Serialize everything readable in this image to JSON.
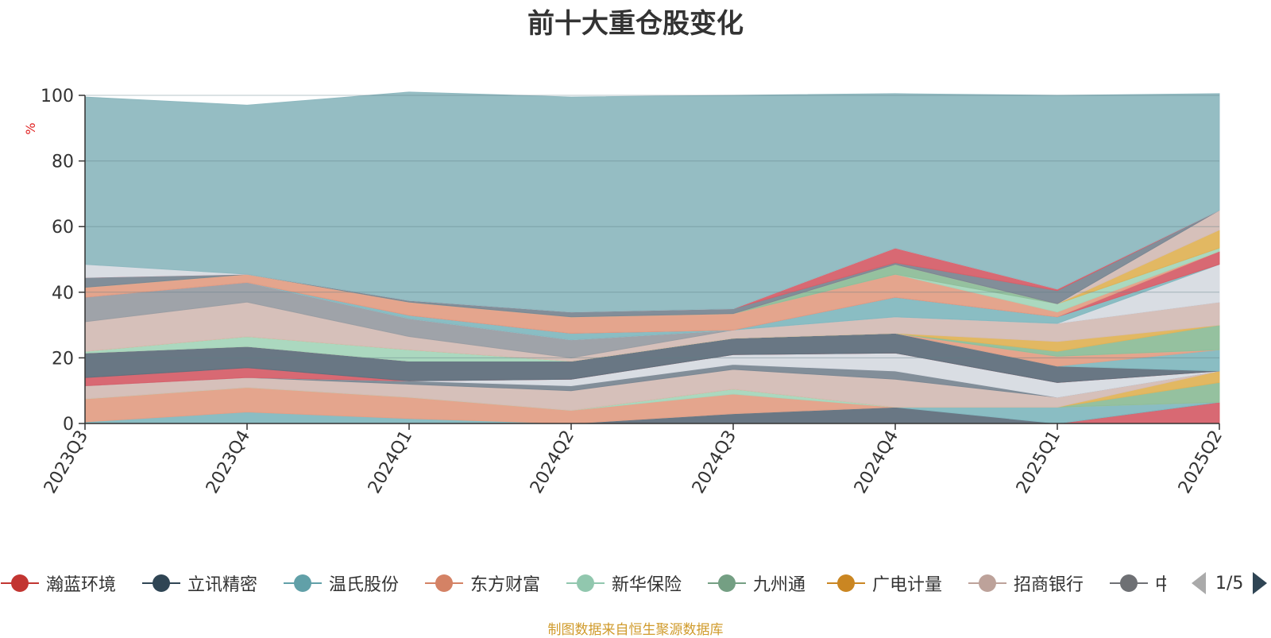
{
  "title": "前十大重仓股变化",
  "source_note": "制图数据来自恒生聚源数据库",
  "pager": {
    "text": "1/5"
  },
  "chart_data": {
    "type": "area",
    "stacked": true,
    "title": "前十大重仓股变化",
    "ylabel": "%",
    "ylim": [
      0,
      100
    ],
    "yticks": [
      "0",
      "20",
      "40",
      "60",
      "80",
      "100"
    ],
    "categories": [
      "2023Q3",
      "2023Q4",
      "2024Q1",
      "2024Q2",
      "2024Q3",
      "2024Q4",
      "2025Q1",
      "2025Q2"
    ],
    "grid": true,
    "legend_position": "bottom",
    "legend_visible": [
      "瀚蓝环境",
      "立讯精密",
      "温氏股份",
      "东方财富",
      "新华保险",
      "九州通",
      "广电计量",
      "招商银行",
      "中国平安"
    ],
    "series": [
      {
        "name": "",
        "color": "#d6616b",
        "values": [
          0,
          0,
          0,
          0,
          0,
          0,
          0,
          6.5
        ]
      },
      {
        "name": "",
        "color": "#61707d",
        "values": [
          0,
          0,
          0,
          0,
          3,
          5,
          0,
          0
        ]
      },
      {
        "name": "",
        "color": "#84b9c0",
        "values": [
          0.5,
          3.5,
          1.5,
          0,
          0,
          0,
          5,
          0
        ]
      },
      {
        "name": "",
        "color": "#e3a087",
        "values": [
          7,
          7.5,
          6.5,
          4,
          6,
          0,
          0,
          0
        ]
      },
      {
        "name": "",
        "color": "#a6d6bc",
        "values": [
          0,
          0,
          0,
          0,
          1.5,
          0,
          0,
          0
        ]
      },
      {
        "name": "",
        "color": "#8fbe9a",
        "values": [
          0,
          0,
          0,
          0,
          0,
          0,
          0,
          6
        ]
      },
      {
        "name": "",
        "color": "#e0b45a",
        "values": [
          0,
          0,
          0,
          0,
          0,
          0,
          0,
          3.5
        ]
      },
      {
        "name": "",
        "color": "#d4bdb6",
        "values": [
          4,
          3,
          4,
          6,
          6,
          8.5,
          3,
          0
        ]
      },
      {
        "name": "",
        "color": "#7b8894",
        "values": [
          0,
          0,
          1,
          1.5,
          1.5,
          2.5,
          0,
          0
        ]
      },
      {
        "name": "",
        "color": "#d7dbe2",
        "values": [
          0,
          0,
          0,
          2,
          3,
          5.5,
          4.5,
          0
        ]
      },
      {
        "name": "",
        "color": "#d6616b",
        "values": [
          2.5,
          3,
          0,
          0,
          0,
          0,
          0,
          0
        ]
      },
      {
        "name": "",
        "color": "#61707d",
        "values": [
          7.5,
          6.5,
          6,
          5.5,
          5,
          6,
          5,
          0
        ]
      },
      {
        "name": "",
        "color": "#84b9c0",
        "values": [
          0,
          0,
          0,
          0,
          0,
          0,
          0,
          6.5
        ]
      },
      {
        "name": "",
        "color": "#e3a087",
        "values": [
          0,
          0,
          0,
          0,
          0,
          0,
          3,
          0
        ]
      },
      {
        "name": "",
        "color": "#a6d6bc",
        "values": [
          0.5,
          3,
          3.5,
          0,
          0,
          0,
          0,
          0
        ]
      },
      {
        "name": "",
        "color": "#8fbe9a",
        "values": [
          0,
          0,
          0,
          0,
          0,
          0,
          1.5,
          7.5
        ]
      },
      {
        "name": "",
        "color": "#e0b45a",
        "values": [
          0,
          0,
          0,
          0,
          0,
          0,
          3,
          0
        ]
      },
      {
        "name": "",
        "color": "#d4bdb6",
        "values": [
          9,
          10.5,
          4,
          1,
          2.5,
          5,
          5.5,
          7
        ]
      },
      {
        "name": "",
        "color": "#9a9ea4",
        "values": [
          7.5,
          6,
          5.5,
          5.5,
          0,
          0,
          0,
          0
        ]
      },
      {
        "name": "",
        "color": "#d7dbe2",
        "values": [
          0,
          0,
          0,
          0,
          0,
          0,
          0,
          11.5
        ]
      },
      {
        "name": "",
        "color": "#84b9c0",
        "values": [
          0,
          0,
          1,
          2,
          0,
          6,
          2,
          0
        ]
      },
      {
        "name": "",
        "color": "#d6616b",
        "values": [
          0,
          0,
          0,
          0,
          0,
          0,
          0,
          4
        ]
      },
      {
        "name": "",
        "color": "#e3a087",
        "values": [
          3,
          2.5,
          4,
          5,
          5,
          7,
          1.5,
          0
        ]
      },
      {
        "name": "",
        "color": "#a6d6bc",
        "values": [
          0,
          0,
          0,
          0,
          0,
          0,
          2.5,
          1
        ]
      },
      {
        "name": "",
        "color": "#8fbe9a",
        "values": [
          0,
          0,
          0,
          0,
          0,
          3,
          0,
          0
        ]
      },
      {
        "name": "",
        "color": "#e0b45a",
        "values": [
          0,
          0,
          0,
          0,
          0,
          0,
          0,
          5.5
        ]
      },
      {
        "name": "",
        "color": "#d4bdb6",
        "values": [
          0,
          0,
          0,
          0,
          0,
          0,
          0,
          6
        ]
      },
      {
        "name": "",
        "color": "#7b8894",
        "values": [
          3,
          0,
          0.5,
          1.5,
          1.5,
          0.5,
          4,
          0
        ]
      },
      {
        "name": "",
        "color": "#d6616b",
        "values": [
          0,
          0,
          0,
          0,
          0,
          4.5,
          0.5,
          0
        ]
      },
      {
        "name": "",
        "color": "#d7dbe2",
        "values": [
          4,
          0,
          0,
          0,
          0,
          0,
          0,
          0
        ]
      },
      {
        "name": "",
        "color": "#8fb9c0",
        "values": [
          51,
          51.5,
          63.5,
          65.5,
          65,
          47,
          59,
          35.5
        ]
      }
    ]
  },
  "legend": [
    {
      "name": "瀚蓝环境",
      "color": "#c23531"
    },
    {
      "name": "立讯精密",
      "color": "#2f4554"
    },
    {
      "name": "温氏股份",
      "color": "#61a0a8"
    },
    {
      "name": "东方财富",
      "color": "#d48265"
    },
    {
      "name": "新华保险",
      "color": "#91c7ae"
    },
    {
      "name": "九州通",
      "color": "#749f83"
    },
    {
      "name": "广电计量",
      "color": "#ca8622"
    },
    {
      "name": "招商银行",
      "color": "#bda29a"
    },
    {
      "name": "中国平安",
      "color": "#6e7074"
    }
  ]
}
